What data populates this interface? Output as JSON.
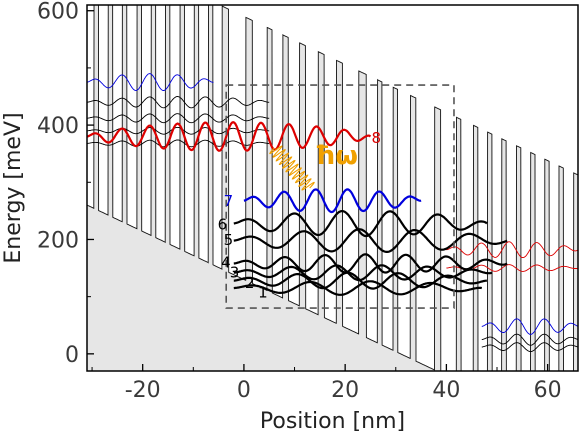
{
  "chart_data": {
    "type": "line",
    "title": "",
    "xlabel": "Position [nm]",
    "ylabel": "Energy [meV]",
    "xlim": [
      -31,
      66
    ],
    "ylim": [
      -30,
      610
    ],
    "xticks": [
      -20,
      0,
      20,
      40,
      60
    ],
    "yticks": [
      0,
      200,
      400,
      600
    ],
    "xtick_labels": [
      "-20",
      "0",
      "20",
      "40",
      "60"
    ],
    "ytick_labels": [
      "0",
      "200",
      "400",
      "600"
    ],
    "grid": false,
    "band_edge": {
      "slope_mev_per_nm": -4.2,
      "offset_mev": 130,
      "barrier_height_mev": 460,
      "barrier_edges_nm": [
        -29.6,
        -28.7,
        -26.8,
        -25.9,
        -24.0,
        -23.1,
        -21.1,
        -20.2,
        -18.3,
        -17.4,
        -15.5,
        -14.6,
        -12.6,
        -11.7,
        -9.8,
        -8.9,
        -7.0,
        -6.1,
        -4.3,
        -3.0,
        0.4,
        1.7,
        4.6,
        5.6,
        7.7,
        8.8,
        11.0,
        12.2,
        14.7,
        15.9,
        18.3,
        19.5,
        22.7,
        24.2,
        26.4,
        27.3,
        29.5,
        30.4,
        32.9,
        34.0,
        37.7,
        38.9,
        42.0,
        42.9,
        45.3,
        46.2,
        48.1,
        49.0,
        50.9,
        51.8,
        53.8,
        54.7,
        56.6,
        57.5,
        59.4,
        60.3,
        62.2,
        63.1,
        65.1,
        66.0
      ]
    },
    "dashed_box": {
      "x": [
        -3.5,
        41.5
      ],
      "y": [
        80,
        470
      ]
    },
    "series": [
      {
        "name": "1",
        "color": "#000000",
        "energy": 115,
        "x_range": [
          -2,
          47
        ],
        "amplitude": 12,
        "period_nm": 12.0
      },
      {
        "name": "2",
        "color": "#000000",
        "energy": 128,
        "x_range": [
          -2,
          48
        ],
        "amplitude": 14,
        "period_nm": 10.0
      },
      {
        "name": "3",
        "color": "#000000",
        "energy": 142,
        "x_range": [
          -2,
          49
        ],
        "amplitude": 13,
        "period_nm": 9.0
      },
      {
        "name": "4",
        "color": "#000000",
        "energy": 158,
        "x_range": [
          -2,
          52
        ],
        "amplitude": 16,
        "period_nm": 8.0
      },
      {
        "name": "5",
        "color": "#000000",
        "energy": 198,
        "x_range": [
          -2,
          52
        ],
        "amplitude": 20,
        "period_nm": 11.0
      },
      {
        "name": "6",
        "color": "#000000",
        "energy": 228,
        "x_range": [
          -2,
          48
        ],
        "amplitude": 22,
        "period_nm": 9.5
      },
      {
        "name": "7",
        "color": "#0000dd",
        "energy": 268,
        "x_range": [
          0,
          35
        ],
        "amplitude": 20,
        "period_nm": 6.3
      },
      {
        "name": "8",
        "color": "#dd0000",
        "energy": 380,
        "x_range": [
          -31,
          25
        ],
        "amplitude": 25,
        "period_nm": 5.5
      }
    ],
    "side_states": [
      {
        "color": "#0000dd",
        "energy": 475,
        "x_range": [
          -31,
          -6
        ],
        "amplitude": 15
      },
      {
        "color": "#000000",
        "energy": 440,
        "x_range": [
          -31,
          5
        ],
        "amplitude": 10
      },
      {
        "color": "#000000",
        "energy": 412,
        "x_range": [
          -31,
          5
        ],
        "amplitude": 8
      },
      {
        "color": "#000000",
        "energy": 390,
        "x_range": [
          -31,
          5
        ],
        "amplitude": 6
      },
      {
        "color": "#000000",
        "energy": 368,
        "x_range": [
          -31,
          5
        ],
        "amplitude": 6
      },
      {
        "color": "#dd0000",
        "energy": 182,
        "x_range": [
          40,
          66
        ],
        "amplitude": 14
      },
      {
        "color": "#dd0000",
        "energy": 150,
        "x_range": [
          40,
          66
        ],
        "amplitude": 6
      },
      {
        "color": "#0000dd",
        "energy": 48,
        "x_range": [
          47,
          66
        ],
        "amplitude": 14
      },
      {
        "color": "#000000",
        "energy": 25,
        "x_range": [
          47,
          66
        ],
        "amplitude": 10
      },
      {
        "color": "#000000",
        "energy": 12,
        "x_range": [
          47,
          66
        ],
        "amplitude": 8
      }
    ],
    "annotations": [
      {
        "text": "ħω",
        "color": "#f0a000"
      }
    ],
    "photon": {
      "color": "#f0a000",
      "from": [
        6,
        360
      ],
      "to": [
        13,
        290
      ]
    }
  }
}
